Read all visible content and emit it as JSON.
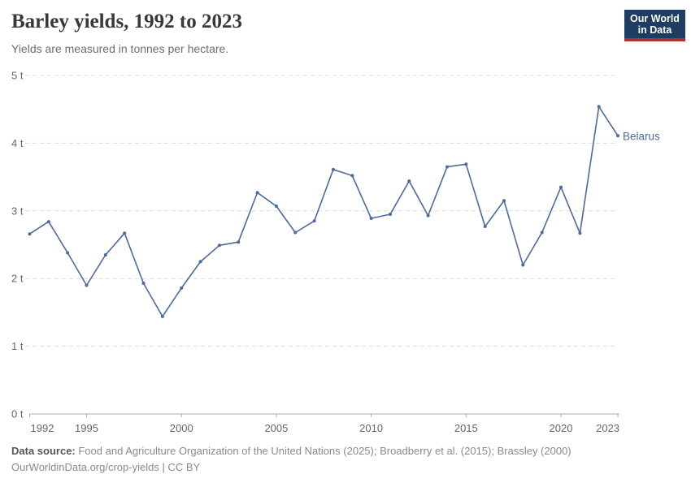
{
  "header": {
    "title": "Barley yields, 1992 to 2023",
    "subtitle": "Yields are measured in tonnes per hectare."
  },
  "logo": {
    "line1": "Our World",
    "line2": "in Data",
    "bg_color": "#1d3d63",
    "accent_color": "#b0322a"
  },
  "chart_data": {
    "type": "line",
    "title": "Barley yields, 1992 to 2023",
    "ylabel": "tonnes per hectare",
    "unit": "t",
    "x": [
      1992,
      1993,
      1994,
      1995,
      1996,
      1997,
      1998,
      1999,
      2000,
      2001,
      2002,
      2003,
      2004,
      2005,
      2006,
      2007,
      2008,
      2009,
      2010,
      2011,
      2012,
      2013,
      2014,
      2015,
      2016,
      2017,
      2018,
      2019,
      2020,
      2021,
      2022,
      2023
    ],
    "series": [
      {
        "name": "Belarus",
        "color": "#4c6a9c",
        "values": [
          2.66,
          2.84,
          2.38,
          1.9,
          2.35,
          2.67,
          1.93,
          1.44,
          1.86,
          2.25,
          2.49,
          2.54,
          3.27,
          3.07,
          2.68,
          2.85,
          3.61,
          3.52,
          2.89,
          2.95,
          3.44,
          2.93,
          3.65,
          3.69,
          2.77,
          3.15,
          2.2,
          2.68,
          3.35,
          2.67,
          4.54,
          4.11
        ]
      }
    ],
    "ylim": [
      0,
      5
    ],
    "yticks": [
      0,
      1,
      2,
      3,
      4,
      5
    ],
    "ytick_labels": [
      "0 t",
      "1 t",
      "2 t",
      "3 t",
      "4 t",
      "5 t"
    ],
    "xticks": [
      1992,
      1995,
      2000,
      2005,
      2010,
      2015,
      2020,
      2023
    ],
    "grid": "horizontal dashed",
    "legend_position": "end-of-line label",
    "colors": {
      "grid": "#dcdcdc",
      "axis": "#adadad",
      "tick_text": "#666666",
      "series": "#4c6a9c"
    }
  },
  "footer": {
    "data_source_label": "Data source:",
    "data_source_text": " Food and Agriculture Organization of the United Nations (2025); Broadberry et al. (2015); Brassley (2000)",
    "attribution": "OurWorldinData.org/crop-yields | CC BY"
  }
}
